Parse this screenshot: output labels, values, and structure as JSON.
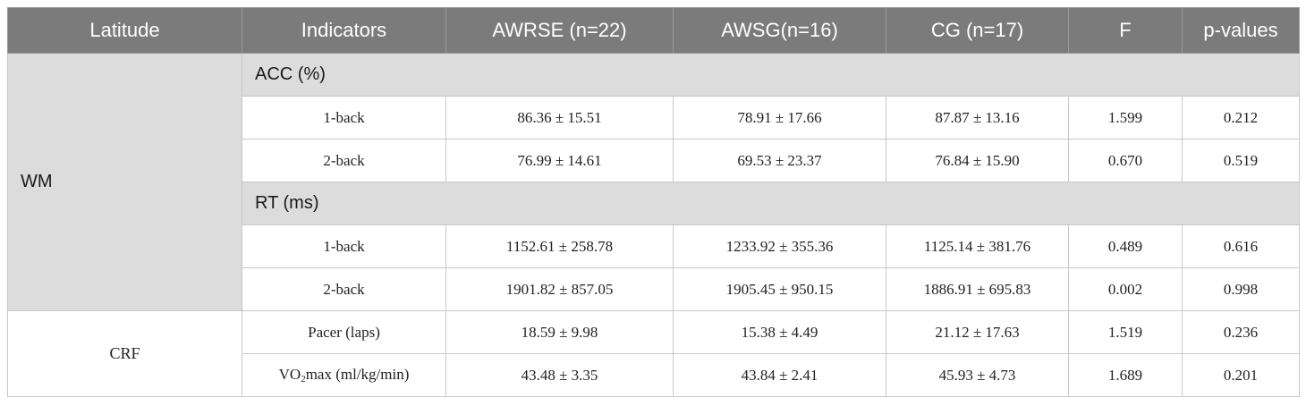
{
  "columns": [
    "Latitude",
    "Indicators",
    "AWRSE (n=22)",
    "AWSG(n=16)",
    "CG (n=17)",
    "F",
    "p-values"
  ],
  "groups": [
    {
      "latitude": "WM",
      "sections": [
        {
          "label": "ACC (%)",
          "rows": [
            {
              "indicator": "1-back",
              "awrse": "86.36 ± 15.51",
              "awsg": "78.91 ± 17.66",
              "cg": "87.87 ± 13.16",
              "f": "1.599",
              "p": "0.212"
            },
            {
              "indicator": "2-back",
              "awrse": "76.99 ± 14.61",
              "awsg": "69.53 ± 23.37",
              "cg": "76.84 ± 15.90",
              "f": "0.670",
              "p": "0.519"
            }
          ]
        },
        {
          "label": "RT (ms)",
          "rows": [
            {
              "indicator": "1-back",
              "awrse": "1152.61 ± 258.78",
              "awsg": "1233.92 ± 355.36",
              "cg": "1125.14 ± 381.76",
              "f": "0.489",
              "p": "0.616"
            },
            {
              "indicator": "2-back",
              "awrse": "1901.82 ± 857.05",
              "awsg": "1905.45 ± 950.15",
              "cg": "1886.91 ± 695.83",
              "f": "0.002",
              "p": "0.998"
            }
          ]
        }
      ]
    },
    {
      "latitude": "CRF",
      "rows": [
        {
          "indicator": "Pacer (laps)",
          "awrse": "18.59 ± 9.98",
          "awsg": "15.38 ± 4.49",
          "cg": "21.12 ± 17.63",
          "f": "1.519",
          "p": "0.236"
        },
        {
          "indicator_prefix": "VO",
          "indicator_sub": "2",
          "indicator_suffix": "max (ml/kg/min)",
          "awrse": "43.48 ± 3.35",
          "awsg": "43.84 ± 2.41",
          "cg": "45.93 ± 4.73",
          "f": "1.689",
          "p": "0.201"
        }
      ]
    }
  ]
}
